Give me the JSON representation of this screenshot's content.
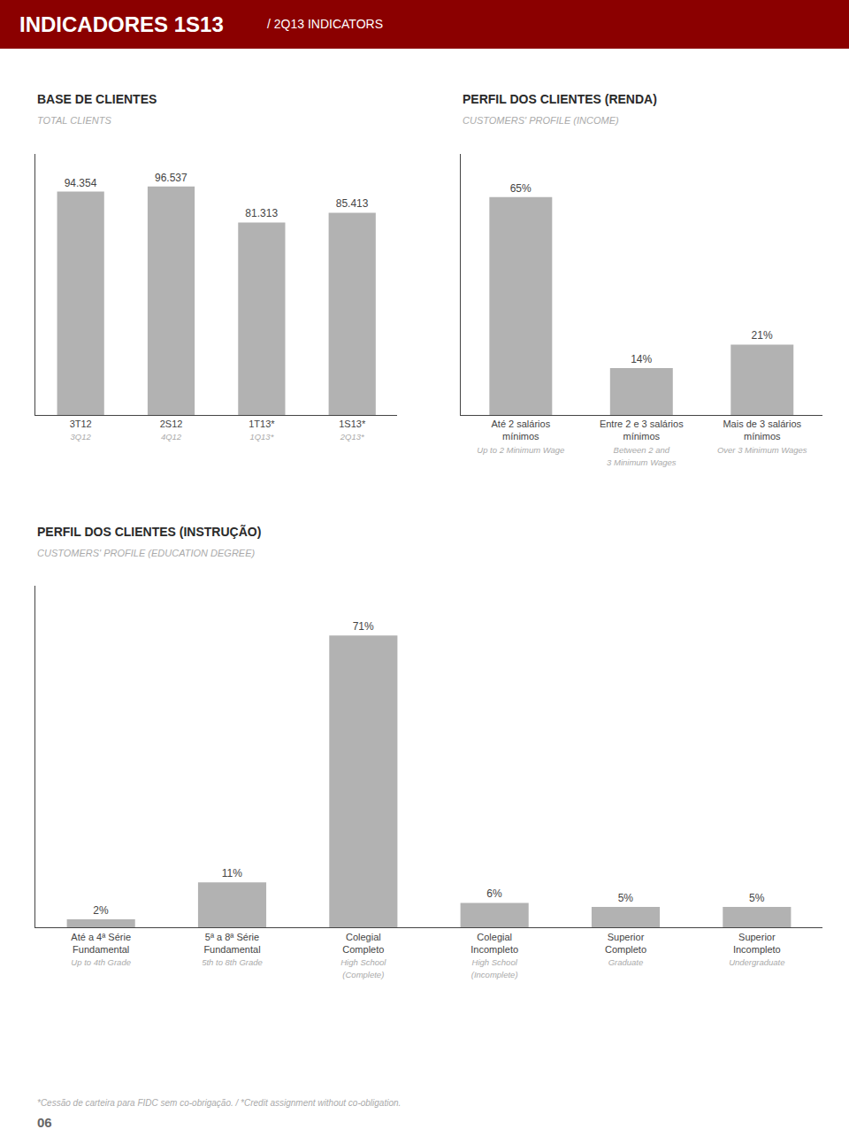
{
  "title": "INDICADORES 1S13",
  "subtitle": "/ 2Q13 INDICATORS",
  "footnote": "*Cessão de carteira para FIDC sem co-obrigação. / *Credit assignment without co-obligation.",
  "page_number": "06",
  "chart_data": [
    {
      "type": "bar",
      "title": "BASE DE CLIENTES",
      "subtitle": "TOTAL CLIENTS",
      "categories": [
        "3T12",
        "2S12",
        "1T13*",
        "1S13*"
      ],
      "subcategories": [
        "3Q12",
        "4Q12",
        "1Q13*",
        "2Q13*"
      ],
      "values": [
        94354,
        96537,
        81313,
        85413
      ],
      "value_labels": [
        "94.354",
        "96.537",
        "81.313",
        "85.413"
      ],
      "data_labels": true,
      "color": "#b2b2b2",
      "ylim": [
        0,
        110394.18
      ],
      "yticks": [],
      "grid": false,
      "tick_labels": "x"
    },
    {
      "type": "bar",
      "title": "PERFIL DOS CLIENTES (RENDA)",
      "subtitle": "CUSTOMERS' PROFILE (INCOME)",
      "categories": [
        "Até 2 salários\nmínimos",
        "Entre 2 e 3 salários\nmínimos",
        "Mais de 3 salários\nmínimos"
      ],
      "subcategories": [
        "Up to 2 Minimum Wage",
        "Between 2 and\n3 Minimum Wages",
        "Over 3 Minimum Wages"
      ],
      "values": [
        65,
        14,
        21
      ],
      "value_labels": [
        "65%",
        "14%",
        "21%"
      ],
      "data_labels": true,
      "color": "#b2b2b2",
      "ylim": [
        0,
        78
      ],
      "yticks": [],
      "grid": false,
      "tick_labels": "x"
    },
    {
      "type": "bar",
      "title": "PERFIL DOS CLIENTES (INSTRUÇÃO)",
      "subtitle": "CUSTOMERS' PROFILE (EDUCATION DEGREE)",
      "categories": [
        "Até a 4ª Série\nFundamental",
        "5ª a 8ª Série\nFundamental",
        "Colegial\nCompleto",
        "Colegial\nIncompleto",
        "Superior\nCompleto",
        "Superior\nIncompleto"
      ],
      "subcategories": [
        "Up to 4th Grade",
        "5th to 8th Grade",
        "High School\n(Complete)",
        "High School\n(Incomplete)",
        "Graduate",
        "Undergraduate"
      ],
      "values": [
        2,
        11,
        71,
        6,
        5,
        5
      ],
      "value_labels": [
        "2%",
        "11%",
        "71%",
        "6%",
        "5%",
        "5%"
      ],
      "data_labels": true,
      "color": "#b2b2b2",
      "ylim": [
        0,
        83.07
      ],
      "yticks": [],
      "grid": false,
      "tick_labels": "x"
    }
  ]
}
